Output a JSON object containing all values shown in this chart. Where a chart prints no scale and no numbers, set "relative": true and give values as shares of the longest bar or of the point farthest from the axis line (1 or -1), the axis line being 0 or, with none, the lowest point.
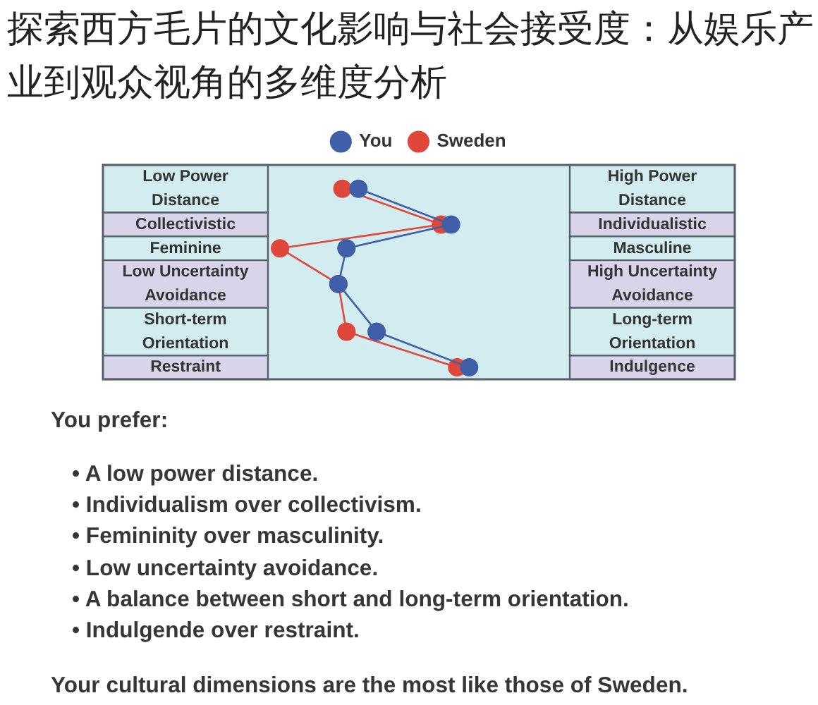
{
  "chart_data": {
    "type": "line",
    "title": "探索西方毛片的文化影响与社会接受度：从娱乐产业到观众视角的多维度分析",
    "orientation": "horizontal",
    "relative": true,
    "categories": [
      "Low Power Distance",
      "Collectivistic",
      "Feminine",
      "Low Uncertainty Avoidance",
      "Short-term Orientation",
      "Restraint"
    ],
    "y2_categories": [
      "High Power Distance",
      "Individualistic",
      "Masculine",
      "High Uncertainty Avoidance",
      "Long-term Orientation",
      "Indulgence"
    ],
    "series": [
      {
        "name": "You",
        "color": "#3f5fa9",
        "values": [
          0.45,
          0.91,
          0.39,
          0.35,
          0.54,
          1
        ]
      },
      {
        "name": "Sweden",
        "color": "#e0473b",
        "values": [
          0.37,
          0.86,
          0.06,
          0.35,
          0.39,
          0.94
        ]
      }
    ],
    "legend": "top",
    "marker": "circle",
    "line_style": "solid",
    "annotations": [
      "You prefer:",
      "• A low power distance.",
      "• Individualism over collectivism.",
      "• Femininity over masculinity.",
      "• Low uncertainty avoidance.",
      "• A balance between short and long-term orientation.",
      "• Indulgende over restraint.",
      "Your cultural dimensions are the most like those of Sweden."
    ]
  }
}
